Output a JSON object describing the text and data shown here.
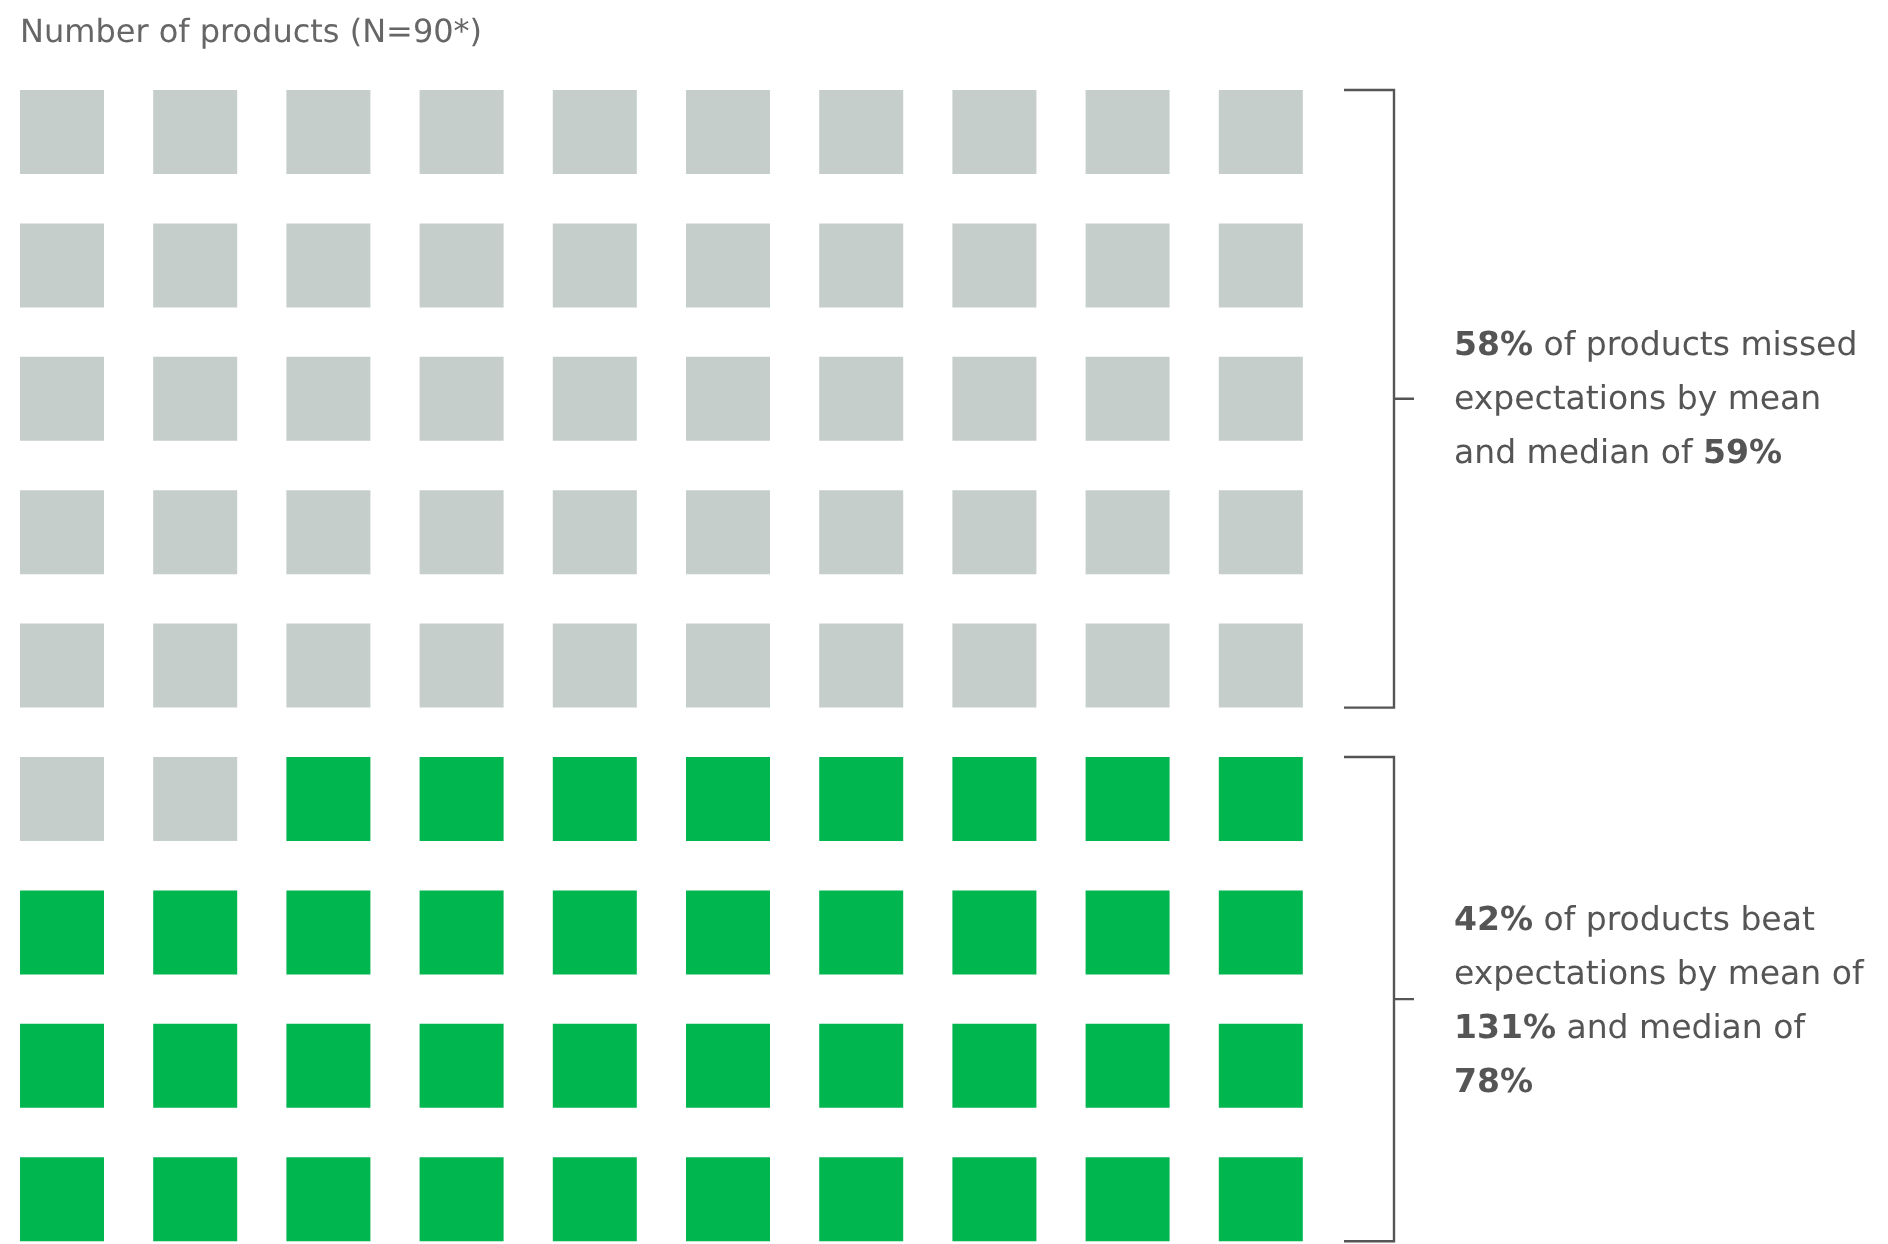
{
  "chart_data": {
    "type": "other",
    "title": "Number of products (N=90*)",
    "categories": [
      null,
      null
    ],
    "values": [
      58,
      42
    ],
    "value_labels": [
      "58%",
      "42%"
    ],
    "colors": [
      "#c5cecb",
      "#00b64f"
    ],
    "annotations": [
      "of products missed expectations by mean and median of 59%",
      "of products beat expectations by mean of 131% and median of 78%"
    ]
  }
}
